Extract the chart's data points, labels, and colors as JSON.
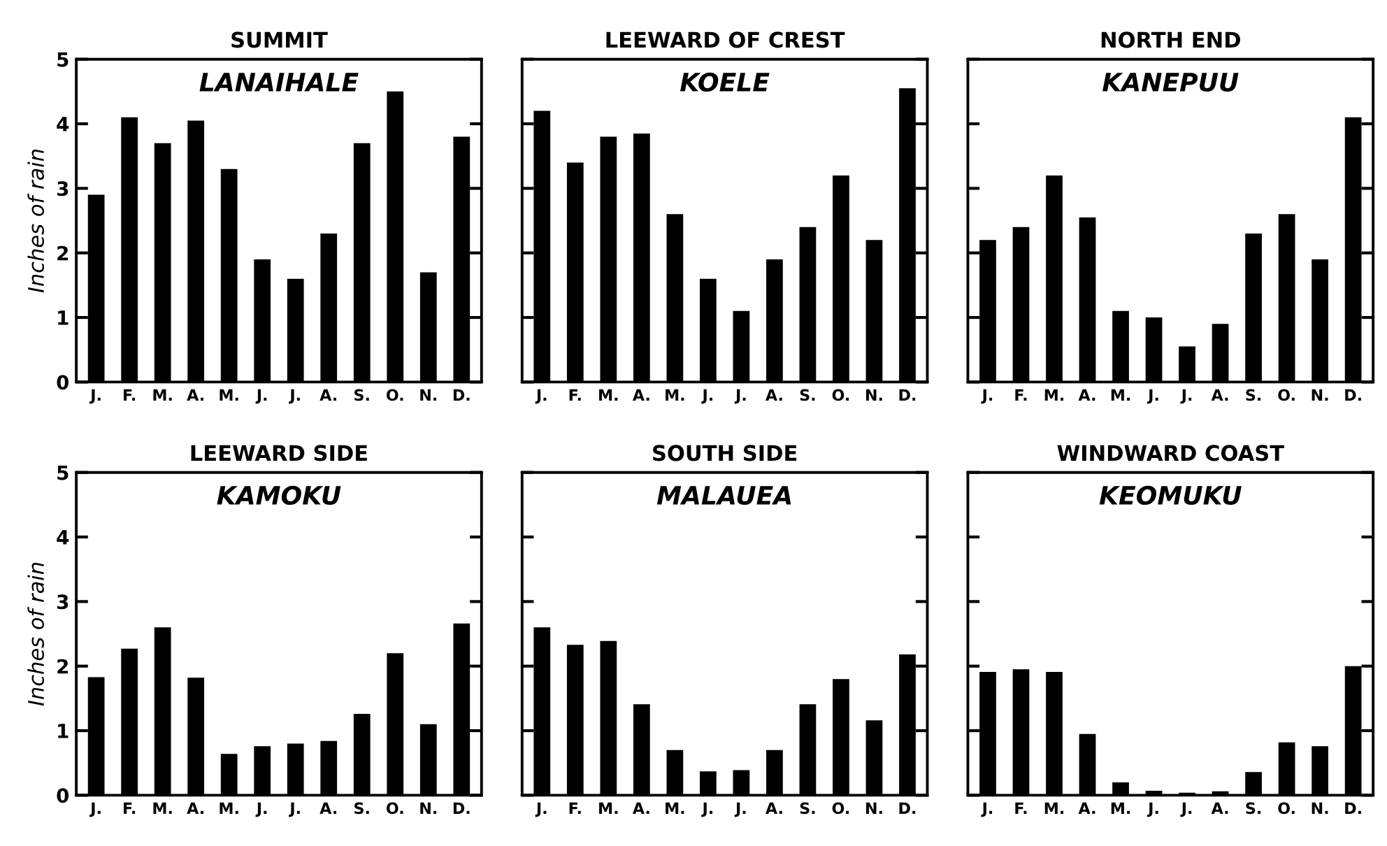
{
  "chart_data": [
    {
      "type": "bar",
      "title": "SUMMIT",
      "subtitle": "LANAIHALE",
      "ylabel": "Inches of rain",
      "categories": [
        "J.",
        "F.",
        "M.",
        "A.",
        "M.",
        "J.",
        "J.",
        "A.",
        "S.",
        "O.",
        "N.",
        "D."
      ],
      "values": [
        2.9,
        4.1,
        3.7,
        4.05,
        3.3,
        1.9,
        1.6,
        2.3,
        3.7,
        4.5,
        1.7,
        3.8
      ],
      "color": "#000000",
      "ylim": [
        0,
        5
      ],
      "yticks": [
        0,
        1,
        2,
        3,
        4,
        5
      ],
      "grid": false
    },
    {
      "type": "bar",
      "title": "LEEWARD OF CREST",
      "subtitle": "KOELE",
      "categories": [
        "J.",
        "F.",
        "M.",
        "A.",
        "M.",
        "J.",
        "J.",
        "A.",
        "S.",
        "O.",
        "N.",
        "D."
      ],
      "values": [
        4.2,
        3.4,
        3.8,
        3.85,
        2.6,
        1.6,
        1.1,
        1.9,
        2.4,
        3.2,
        2.2,
        4.55
      ],
      "color": "#000000",
      "ylim": [
        0,
        5
      ],
      "yticks": [
        0,
        1,
        2,
        3,
        4,
        5
      ],
      "tick_labels": "x",
      "grid": false
    },
    {
      "type": "bar",
      "title": "NORTH END",
      "subtitle": "KANEPUU",
      "categories": [
        "J.",
        "F.",
        "M.",
        "A.",
        "M.",
        "J.",
        "J.",
        "A.",
        "S.",
        "O.",
        "N.",
        "D."
      ],
      "values": [
        2.2,
        2.4,
        3.2,
        2.55,
        1.1,
        1.0,
        0.55,
        0.9,
        2.3,
        2.6,
        1.9,
        4.1
      ],
      "color": "#000000",
      "ylim": [
        0,
        5
      ],
      "yticks": [
        0,
        1,
        2,
        3,
        4,
        5
      ],
      "tick_labels": "x",
      "grid": false
    },
    {
      "type": "bar",
      "title": "LEEWARD SIDE",
      "subtitle": "KAMOKU",
      "ylabel": "Inches of rain",
      "categories": [
        "J.",
        "F.",
        "M.",
        "A.",
        "M.",
        "J.",
        "J.",
        "A.",
        "S.",
        "O.",
        "N.",
        "D."
      ],
      "values": [
        1.83,
        2.27,
        2.6,
        1.82,
        0.64,
        0.76,
        0.8,
        0.84,
        1.26,
        2.2,
        1.1,
        2.66
      ],
      "color": "#000000",
      "ylim": [
        0,
        5
      ],
      "yticks": [
        0,
        1,
        2,
        3,
        4,
        5
      ],
      "grid": false
    },
    {
      "type": "bar",
      "title": "SOUTH SIDE",
      "subtitle": "MALAUEA",
      "categories": [
        "J.",
        "F.",
        "M.",
        "A.",
        "M.",
        "J.",
        "J.",
        "A.",
        "S.",
        "O.",
        "N.",
        "D."
      ],
      "values": [
        2.6,
        2.33,
        2.39,
        1.41,
        0.7,
        0.37,
        0.39,
        0.7,
        1.41,
        1.8,
        1.16,
        2.18
      ],
      "color": "#000000",
      "ylim": [
        0,
        5
      ],
      "yticks": [
        0,
        1,
        2,
        3,
        4,
        5
      ],
      "tick_labels": "x",
      "grid": false
    },
    {
      "type": "bar",
      "title": "WINDWARD COAST",
      "subtitle": "KEOMUKU",
      "categories": [
        "J.",
        "F.",
        "M.",
        "A.",
        "M.",
        "J.",
        "J.",
        "A.",
        "S.",
        "O.",
        "N.",
        "D."
      ],
      "values": [
        1.91,
        1.95,
        1.91,
        0.95,
        0.2,
        0.07,
        0.04,
        0.06,
        0.36,
        0.82,
        0.76,
        2.0
      ],
      "color": "#000000",
      "ylim": [
        0,
        5
      ],
      "yticks": [
        0,
        1,
        2,
        3,
        4,
        5
      ],
      "tick_labels": "x",
      "grid": false
    }
  ]
}
